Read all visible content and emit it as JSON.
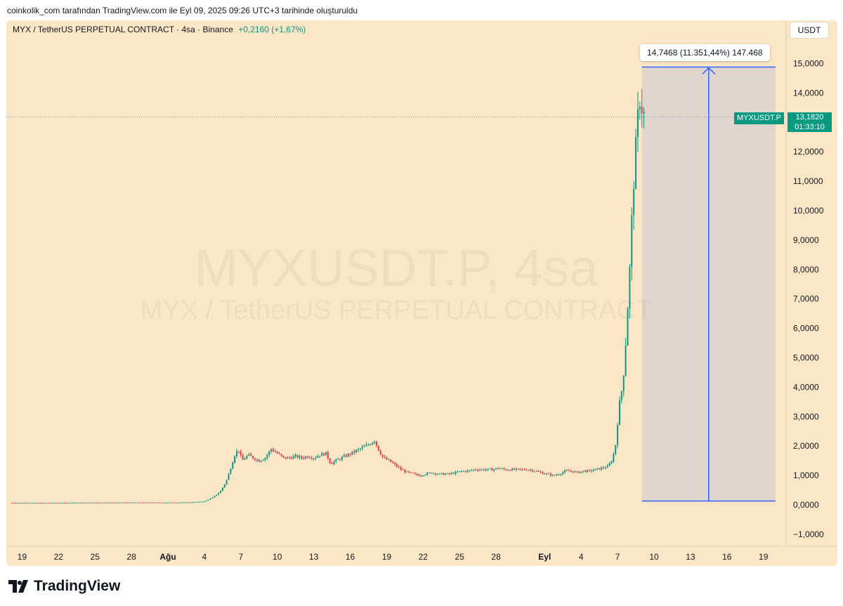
{
  "header": {
    "credit": "coinkolik_com tarafından TradingView.com ile Eyl 09, 2025 09:26 UTC+3 tarihinde oluşturuldu"
  },
  "symbol_bar": {
    "title": "MYX / TetherUS PERPETUAL CONTRACT · 4sa · Binance",
    "change": "+0,2160 (+1,67%)"
  },
  "currency_button": "USDT",
  "measure_tooltip": "14,7468 (11.351,44%) 147.468",
  "symbol_tag": "MYXUSDT.P",
  "price_tag": {
    "price": "13,1820",
    "countdown": "01:33:10"
  },
  "watermark": {
    "line1": "MYXUSDT.P, 4sa",
    "line2": "MYX / TetherUS PERPETUAL CONTRACT"
  },
  "footer": {
    "brand": "TradingView"
  },
  "colors": {
    "up": "#089981",
    "down": "#f23645",
    "measure": "#2962ff",
    "background": "#fbe6c6"
  },
  "chart_data": {
    "type": "candlestick",
    "y_ticks": [
      "15,0000",
      "14,0000",
      "13,0000",
      "12,0000",
      "11,0000",
      "10,0000",
      "9,0000",
      "8,0000",
      "7,0000",
      "6,0000",
      "5,0000",
      "4,0000",
      "3,0000",
      "2,0000",
      "1,0000",
      "0,0000",
      "−1,0000"
    ],
    "y_tick_values": [
      15,
      14,
      13,
      12,
      11,
      10,
      9,
      8,
      7,
      6,
      5,
      4,
      3,
      2,
      1,
      0,
      -1
    ],
    "ylim": [
      -1,
      15
    ],
    "x_ticks": [
      "19",
      "22",
      "25",
      "28",
      "Ağu",
      "4",
      "7",
      "10",
      "13",
      "16",
      "19",
      "22",
      "25",
      "28",
      "Eyl",
      "4",
      "7",
      "10",
      "13",
      "16",
      "19"
    ],
    "x_tick_days": [
      -12,
      -9,
      -6,
      -3,
      0,
      3,
      6,
      9,
      12,
      15,
      18,
      21,
      24,
      27,
      31,
      34,
      37,
      40,
      43,
      46,
      49
    ],
    "x_axis_note": "days counted from Ağu 1 (Aug 1, 2025)",
    "price_close_series": [
      [
        -13,
        0.07
      ],
      [
        -10,
        0.07
      ],
      [
        -7,
        0.075
      ],
      [
        -4,
        0.08
      ],
      [
        -1,
        0.08
      ],
      [
        1,
        0.08
      ],
      [
        2,
        0.09
      ],
      [
        3,
        0.12
      ],
      [
        3.7,
        0.25
      ],
      [
        4.3,
        0.45
      ],
      [
        4.8,
        0.8
      ],
      [
        5.2,
        1.3
      ],
      [
        5.5,
        1.7
      ],
      [
        5.8,
        1.9
      ],
      [
        6.1,
        1.5
      ],
      [
        6.6,
        1.7
      ],
      [
        7.0,
        1.6
      ],
      [
        7.5,
        1.5
      ],
      [
        8.0,
        1.6
      ],
      [
        8.5,
        1.9
      ],
      [
        9.0,
        1.75
      ],
      [
        9.5,
        1.6
      ],
      [
        10.0,
        1.6
      ],
      [
        10.5,
        1.65
      ],
      [
        11.0,
        1.6
      ],
      [
        11.5,
        1.65
      ],
      [
        12.0,
        1.6
      ],
      [
        12.5,
        1.7
      ],
      [
        13.0,
        1.75
      ],
      [
        13.4,
        1.4
      ],
      [
        13.8,
        1.5
      ],
      [
        14.3,
        1.6
      ],
      [
        14.8,
        1.7
      ],
      [
        15.3,
        1.8
      ],
      [
        15.8,
        1.9
      ],
      [
        16.3,
        2.0
      ],
      [
        16.7,
        2.1
      ],
      [
        17.0,
        2.2
      ],
      [
        17.3,
        1.9
      ],
      [
        17.7,
        1.6
      ],
      [
        18.2,
        1.5
      ],
      [
        18.7,
        1.35
      ],
      [
        19.2,
        1.2
      ],
      [
        19.7,
        1.1
      ],
      [
        20.2,
        1.05
      ],
      [
        20.7,
        1.0
      ],
      [
        21.2,
        1.05
      ],
      [
        21.7,
        1.1
      ],
      [
        22.2,
        1.05
      ],
      [
        22.7,
        1.05
      ],
      [
        23.2,
        1.05
      ],
      [
        23.7,
        1.1
      ],
      [
        24.2,
        1.15
      ],
      [
        24.7,
        1.15
      ],
      [
        25.2,
        1.2
      ],
      [
        25.7,
        1.2
      ],
      [
        26.2,
        1.2
      ],
      [
        26.7,
        1.2
      ],
      [
        27.2,
        1.25
      ],
      [
        27.7,
        1.2
      ],
      [
        28.2,
        1.2
      ],
      [
        28.7,
        1.2
      ],
      [
        29.2,
        1.2
      ],
      [
        29.7,
        1.2
      ],
      [
        30.2,
        1.15
      ],
      [
        30.7,
        1.1
      ],
      [
        31.2,
        1.05
      ],
      [
        31.7,
        1.0
      ],
      [
        32.2,
        1.05
      ],
      [
        32.7,
        1.15
      ],
      [
        33.2,
        1.15
      ],
      [
        33.7,
        1.1
      ],
      [
        34.2,
        1.15
      ],
      [
        34.7,
        1.15
      ],
      [
        35.2,
        1.2
      ],
      [
        35.7,
        1.25
      ],
      [
        36.2,
        1.3
      ],
      [
        36.5,
        1.5
      ],
      [
        36.8,
        1.9
      ],
      [
        37.0,
        2.8
      ],
      [
        37.2,
        3.6
      ],
      [
        37.4,
        4.0
      ],
      [
        37.6,
        5.0
      ],
      [
        37.8,
        6.5
      ],
      [
        38.0,
        8.0
      ],
      [
        38.2,
        10.0
      ],
      [
        38.4,
        11.5
      ],
      [
        38.6,
        12.8
      ],
      [
        38.8,
        13.9
      ],
      [
        39.0,
        13.5
      ],
      [
        39.2,
        13.2
      ]
    ],
    "last_price": 13.182,
    "current_price_line": 13.182,
    "measure": {
      "from_day": 39,
      "to_day": 50,
      "low": 0.13,
      "high": 14.88,
      "label": "14,7468 (11.351,44%) 147.468"
    }
  }
}
